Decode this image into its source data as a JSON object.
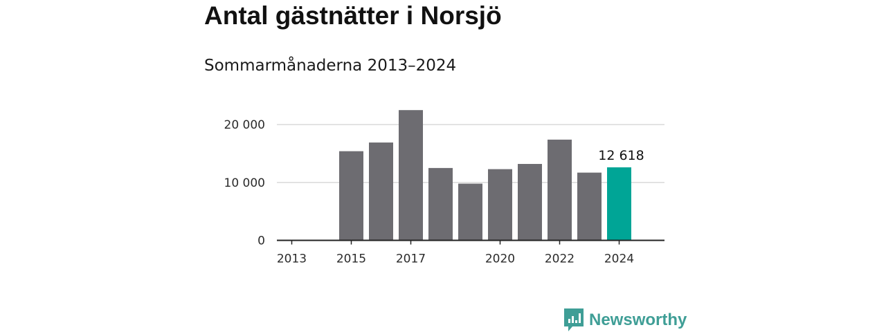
{
  "title": "Antal gästnätter i Norsjö",
  "subtitle": "Sommarmånaderna 2013–2024",
  "brand": {
    "name": "Newsworthy",
    "icon": "newsworthy-logo-icon",
    "color": "#3f9e96"
  },
  "chart_data": {
    "type": "bar",
    "categories": [
      "2013",
      "2014",
      "2015",
      "2016",
      "2017",
      "2018",
      "2019",
      "2020",
      "2021",
      "2022",
      "2023",
      "2024"
    ],
    "values": [
      null,
      null,
      15400,
      16900,
      22500,
      12500,
      9800,
      12300,
      13200,
      17400,
      11700,
      12618
    ],
    "x_tick_labels": [
      "2013",
      "2015",
      "2017",
      "2020",
      "2022",
      "2024"
    ],
    "y_ticks": [
      0,
      10000,
      20000
    ],
    "y_tick_labels": [
      "0",
      "10 000",
      "20 000"
    ],
    "ylim": [
      0,
      23000
    ],
    "grid": true,
    "highlight": {
      "category": "2024",
      "label": "12 618"
    },
    "colors": {
      "bar": "#6d6c71",
      "highlight": "#00a596",
      "grid": "#d9d9d9",
      "axis": "#222222"
    }
  }
}
